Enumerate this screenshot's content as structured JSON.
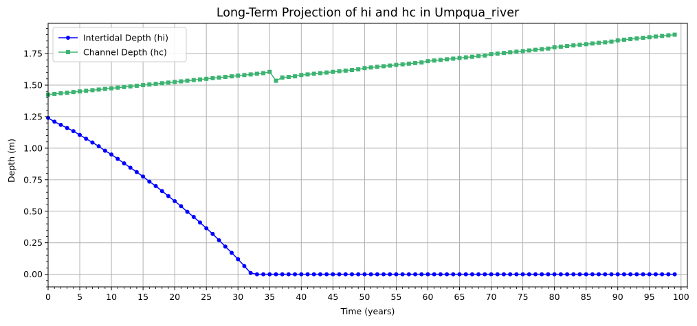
{
  "chart_data": {
    "type": "line",
    "title": "Long-Term Projection of hi and hc in Umpqua_river",
    "xlabel": "Time (years)",
    "ylabel": "Depth (m)",
    "xlim": [
      0,
      101
    ],
    "ylim": [
      -0.1,
      1.99
    ],
    "x_ticks": [
      0,
      5,
      10,
      15,
      20,
      25,
      30,
      35,
      40,
      45,
      50,
      55,
      60,
      65,
      70,
      75,
      80,
      85,
      90,
      95,
      100
    ],
    "x_minor_step": 1,
    "y_ticks": [
      0.0,
      0.25,
      0.5,
      0.75,
      1.0,
      1.25,
      1.5,
      1.75
    ],
    "y_tick_labels": [
      "0.00",
      "0.25",
      "0.50",
      "0.75",
      "1.00",
      "1.25",
      "1.50",
      "1.75"
    ],
    "grid": true,
    "legend_position": "top-left",
    "x": [
      0,
      1,
      2,
      3,
      4,
      5,
      6,
      7,
      8,
      9,
      10,
      11,
      12,
      13,
      14,
      15,
      16,
      17,
      18,
      19,
      20,
      21,
      22,
      23,
      24,
      25,
      26,
      27,
      28,
      29,
      30,
      31,
      32,
      33,
      34,
      35,
      36,
      37,
      38,
      39,
      40,
      41,
      42,
      43,
      44,
      45,
      46,
      47,
      48,
      49,
      50,
      51,
      52,
      53,
      54,
      55,
      56,
      57,
      58,
      59,
      60,
      61,
      62,
      63,
      64,
      65,
      66,
      67,
      68,
      69,
      70,
      71,
      72,
      73,
      74,
      75,
      76,
      77,
      78,
      79,
      80,
      81,
      82,
      83,
      84,
      85,
      86,
      87,
      88,
      89,
      90,
      91,
      92,
      93,
      94,
      95,
      96,
      97,
      98,
      99
    ],
    "series": [
      {
        "name": "Intertidal Depth (hi)",
        "color": "#0000ff",
        "marker": "circle",
        "values": [
          1.24,
          1.21,
          1.185,
          1.16,
          1.135,
          1.105,
          1.075,
          1.045,
          1.015,
          0.98,
          0.95,
          0.915,
          0.88,
          0.845,
          0.81,
          0.775,
          0.735,
          0.7,
          0.66,
          0.62,
          0.58,
          0.54,
          0.495,
          0.455,
          0.41,
          0.365,
          0.32,
          0.27,
          0.22,
          0.17,
          0.12,
          0.065,
          0.01,
          0,
          0,
          0,
          0,
          0,
          0,
          0,
          0,
          0,
          0,
          0,
          0,
          0,
          0,
          0,
          0,
          0,
          0,
          0,
          0,
          0,
          0,
          0,
          0,
          0,
          0,
          0,
          0,
          0,
          0,
          0,
          0,
          0,
          0,
          0,
          0,
          0,
          0,
          0,
          0,
          0,
          0,
          0,
          0,
          0,
          0,
          0,
          0,
          0,
          0,
          0,
          0,
          0,
          0,
          0,
          0,
          0,
          0,
          0,
          0,
          0,
          0,
          0,
          0,
          0,
          0,
          0
        ]
      },
      {
        "name": "Channel Depth (hc)",
        "color": "#3cb371",
        "marker": "square",
        "values": [
          1.425,
          1.43,
          1.435,
          1.44,
          1.445,
          1.45,
          1.455,
          1.46,
          1.465,
          1.47,
          1.475,
          1.48,
          1.485,
          1.49,
          1.495,
          1.5,
          1.505,
          1.51,
          1.515,
          1.52,
          1.525,
          1.53,
          1.535,
          1.54,
          1.545,
          1.55,
          1.555,
          1.56,
          1.565,
          1.57,
          1.575,
          1.58,
          1.585,
          1.59,
          1.595,
          1.605,
          1.535,
          1.56,
          1.565,
          1.57,
          1.58,
          1.585,
          1.59,
          1.595,
          1.6,
          1.605,
          1.61,
          1.615,
          1.62,
          1.625,
          1.635,
          1.64,
          1.645,
          1.65,
          1.655,
          1.66,
          1.665,
          1.67,
          1.675,
          1.68,
          1.69,
          1.695,
          1.7,
          1.705,
          1.71,
          1.715,
          1.72,
          1.725,
          1.73,
          1.735,
          1.745,
          1.75,
          1.755,
          1.76,
          1.765,
          1.77,
          1.775,
          1.78,
          1.785,
          1.79,
          1.8,
          1.805,
          1.81,
          1.815,
          1.82,
          1.825,
          1.83,
          1.835,
          1.84,
          1.845,
          1.855,
          1.86,
          1.865,
          1.87,
          1.875,
          1.88,
          1.885,
          1.89,
          1.895,
          1.9
        ]
      }
    ]
  }
}
